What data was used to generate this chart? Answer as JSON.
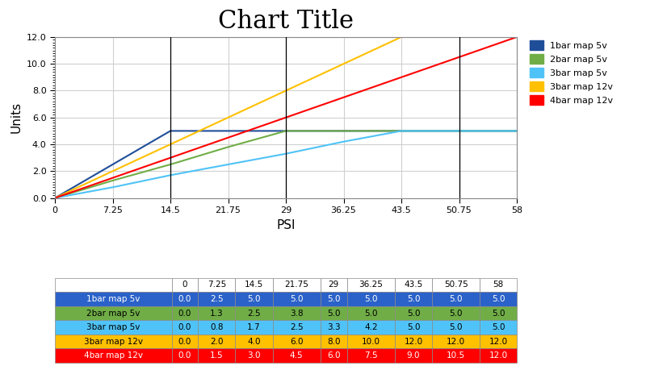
{
  "title": "Chart Title",
  "xlabel": "PSI",
  "ylabel": "Units",
  "x_values": [
    0,
    7.25,
    14.5,
    21.75,
    29,
    36.25,
    43.5,
    50.75,
    58
  ],
  "series": [
    {
      "label": "1bar map 5v",
      "color": "#1f4e99",
      "values": [
        0.0,
        2.5,
        5.0,
        5.0,
        5.0,
        5.0,
        5.0,
        5.0,
        5.0
      ]
    },
    {
      "label": "2bar map 5v",
      "color": "#70ad47",
      "values": [
        0.0,
        1.3,
        2.5,
        3.8,
        5.0,
        5.0,
        5.0,
        5.0,
        5.0
      ]
    },
    {
      "label": "3bar map 5v",
      "color": "#4fc3f7",
      "values": [
        0.0,
        0.8,
        1.7,
        2.5,
        3.3,
        4.2,
        5.0,
        5.0,
        5.0
      ]
    },
    {
      "label": "3bar map 12v",
      "color": "#ffc000",
      "values": [
        0.0,
        2.0,
        4.0,
        6.0,
        8.0,
        10.0,
        12.0,
        12.0,
        12.0
      ]
    },
    {
      "label": "4bar map 12v",
      "color": "#ff0000",
      "values": [
        0.0,
        1.5,
        3.0,
        4.5,
        6.0,
        7.5,
        9.0,
        10.5,
        12.0
      ]
    }
  ],
  "ylim": [
    0,
    12.0
  ],
  "yticks_major": [
    0.0,
    2.0,
    4.0,
    6.0,
    8.0,
    10.0,
    12.0
  ],
  "vlines": [
    14.5,
    29,
    50.75
  ],
  "table_row_colors": [
    "#2b62c9",
    "#70ad47",
    "#4fc3f7",
    "#ffc000",
    "#ff0000"
  ],
  "table_row_labels": [
    "1bar map 5v",
    "2bar map 5v",
    "3bar map 5v",
    "3bar map 12v",
    "4bar map 12v"
  ],
  "table_text_colors": [
    "white",
    "black",
    "black",
    "black",
    "white"
  ],
  "bg_color": "#ffffff",
  "plot_bg": "#ffffff",
  "grid_color": "#d0d0d0",
  "title_fontsize": 22,
  "axis_fontsize": 10,
  "tick_fontsize": 8
}
